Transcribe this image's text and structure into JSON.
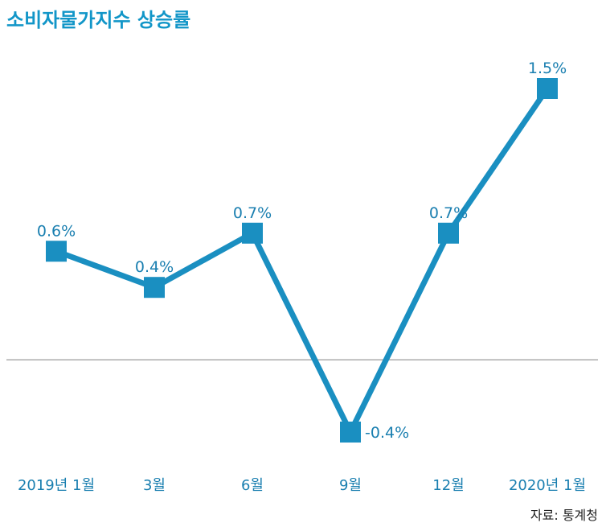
{
  "chart_data": {
    "type": "line",
    "title": "소비자물가지수 상승률",
    "categories": [
      "2019년 1월",
      "3월",
      "6월",
      "9월",
      "12월",
      "2020년 1월"
    ],
    "series": [
      {
        "values": [
          0.6,
          0.4,
          0.7,
          -0.4,
          0.7,
          1.5
        ],
        "labels": [
          "0.6%",
          "0.4%",
          "0.7%",
          "-0.4%",
          "0.7%",
          "1.5%"
        ]
      }
    ],
    "baseline": 0,
    "ylim": [
      -0.4,
      1.5
    ],
    "grid": false,
    "legend": "none",
    "source": "자료: 통계청"
  },
  "colors": {
    "title": "#1296c8",
    "line": "#1a8fc1",
    "marker": "#1a8fc1",
    "label": "#1a7fb0",
    "baseline": "#808080",
    "source": "#222222"
  }
}
